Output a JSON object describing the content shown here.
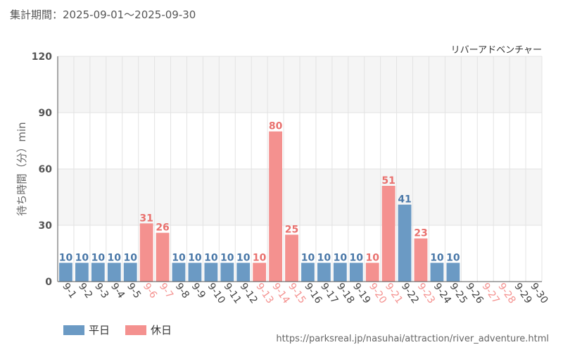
{
  "header": {
    "period": "集計期間：2025-09-01～2025-09-30"
  },
  "footer": {
    "url": "https://parksreal.jp/nasuhai/attraction/river_adventure.html"
  },
  "legend": {
    "weekday": "平日",
    "holiday": "休日"
  },
  "colors": {
    "weekday": "#6b9ac4",
    "holiday": "#f4918f",
    "weekday_label": "#4a78a8",
    "holiday_label": "#e9716e"
  },
  "chart_data": {
    "type": "bar",
    "title": "リバーアドベンチャー",
    "ylabel": "待ち時間（分）min",
    "ylim": [
      0,
      120
    ],
    "yticks": [
      "0",
      "30",
      "60",
      "90",
      "120"
    ],
    "categories": [
      "9-1",
      "9-2",
      "9-3",
      "9-4",
      "9-5",
      "9-6",
      "9-7",
      "9-8",
      "9-9",
      "9-10",
      "9-11",
      "9-12",
      "9-13",
      "9-14",
      "9-15",
      "9-16",
      "9-17",
      "9-18",
      "9-19",
      "9-20",
      "9-21",
      "9-22",
      "9-23",
      "9-24",
      "9-25",
      "9-26",
      "9-27",
      "9-28",
      "9-29",
      "9-30"
    ],
    "values": [
      10,
      10,
      10,
      10,
      10,
      31,
      26,
      10,
      10,
      10,
      10,
      10,
      10,
      80,
      25,
      10,
      10,
      10,
      10,
      10,
      51,
      41,
      23,
      10,
      10,
      null,
      null,
      null,
      null,
      null
    ],
    "day_type": [
      "weekday",
      "weekday",
      "weekday",
      "weekday",
      "weekday",
      "holiday",
      "holiday",
      "weekday",
      "weekday",
      "weekday",
      "weekday",
      "weekday",
      "holiday",
      "holiday",
      "holiday",
      "weekday",
      "weekday",
      "weekday",
      "weekday",
      "holiday",
      "holiday",
      "weekday",
      "holiday",
      "weekday",
      "weekday",
      "weekday",
      "holiday",
      "holiday",
      "weekday",
      "weekday"
    ],
    "grid": true
  }
}
